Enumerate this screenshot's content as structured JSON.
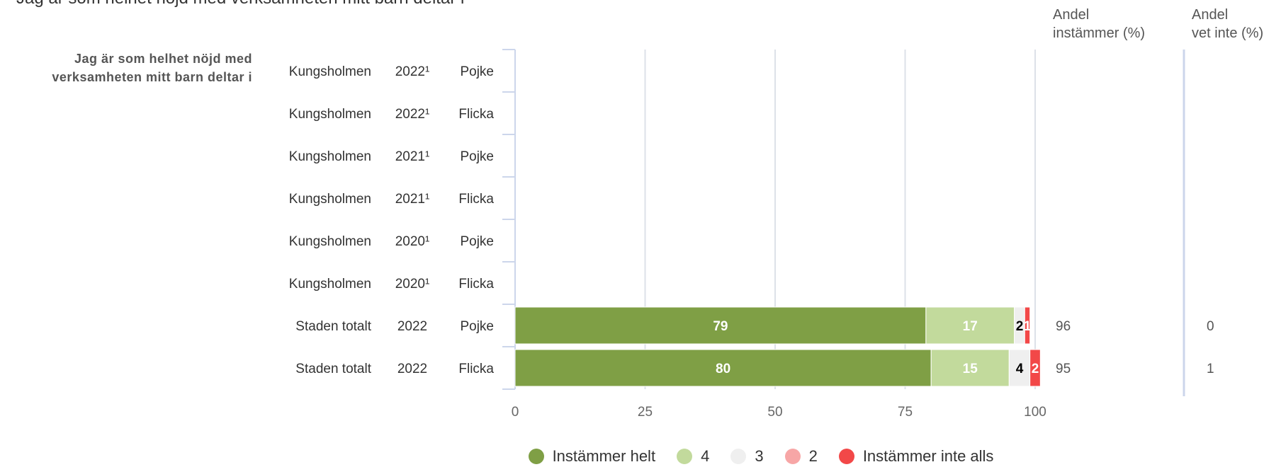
{
  "chart_data": {
    "type": "bar",
    "stacked": true,
    "orientation": "horizontal",
    "title": "Jag är som helhet nöjd med verksamheten mitt barn deltar i",
    "question": "Jag är som helhet nöjd med verksamheten mitt barn deltar i",
    "column_headers": {
      "instammer": [
        "Andel",
        "instämmer (%)"
      ],
      "vet_inte": [
        "Andel",
        "vet inte (%)"
      ]
    },
    "rows": [
      {
        "area": "Kungsholmen",
        "year": "2022¹",
        "gender": "Pojke",
        "values": [],
        "instammer": "",
        "vet_inte": ""
      },
      {
        "area": "Kungsholmen",
        "year": "2022¹",
        "gender": "Flicka",
        "values": [],
        "instammer": "",
        "vet_inte": ""
      },
      {
        "area": "Kungsholmen",
        "year": "2021¹",
        "gender": "Pojke",
        "values": [],
        "instammer": "",
        "vet_inte": ""
      },
      {
        "area": "Kungsholmen",
        "year": "2021¹",
        "gender": "Flicka",
        "values": [],
        "instammer": "",
        "vet_inte": ""
      },
      {
        "area": "Kungsholmen",
        "year": "2020¹",
        "gender": "Pojke",
        "values": [],
        "instammer": "",
        "vet_inte": ""
      },
      {
        "area": "Kungsholmen",
        "year": "2020¹",
        "gender": "Flicka",
        "values": [],
        "instammer": "",
        "vet_inte": ""
      },
      {
        "area": "Staden totalt",
        "year": "2022",
        "gender": "Pojke",
        "values": [
          79,
          17,
          2,
          0,
          1
        ],
        "instammer": "96",
        "vet_inte": "0"
      },
      {
        "area": "Staden totalt",
        "year": "2022",
        "gender": "Flicka",
        "values": [
          80,
          15,
          4,
          0,
          2
        ],
        "instammer": "95",
        "vet_inte": "1"
      }
    ],
    "series": [
      {
        "name": "Instämmer helt",
        "color": "#7f9f45"
      },
      {
        "name": "4",
        "color": "#c2da9c"
      },
      {
        "name": "3",
        "color": "#efefef"
      },
      {
        "name": "2",
        "color": "#f7a6a6"
      },
      {
        "name": "Instämmer inte alls",
        "color": "#f24848"
      }
    ],
    "x_ticks": [
      "0",
      "25",
      "50",
      "75",
      "100"
    ],
    "xlim": [
      0,
      100
    ],
    "grid": true,
    "legend_position": "bottom"
  }
}
